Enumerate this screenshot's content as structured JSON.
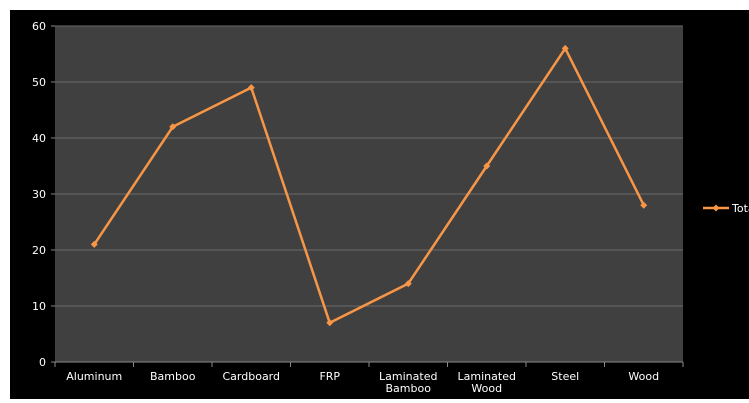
{
  "chart_data": {
    "type": "line",
    "categories": [
      "Aluminum",
      "Bamboo",
      "Cardboard",
      "FRP",
      "Laminated Bamboo",
      "Laminated Wood",
      "Steel",
      "Wood"
    ],
    "series": [
      {
        "name": "Total",
        "values": [
          21,
          42,
          49,
          7,
          14,
          35,
          56,
          28
        ]
      }
    ],
    "title": "",
    "xlabel": "",
    "ylabel": "",
    "ylim": [
      0,
      60
    ],
    "yticks": [
      0,
      10,
      20,
      30,
      40,
      50,
      60
    ],
    "grid": true,
    "legend": "right",
    "colors": {
      "background": "#000000",
      "plot_area": "#404040",
      "gridline": "#6a6a6a",
      "series": "#f79646",
      "text": "#ffffff"
    }
  }
}
